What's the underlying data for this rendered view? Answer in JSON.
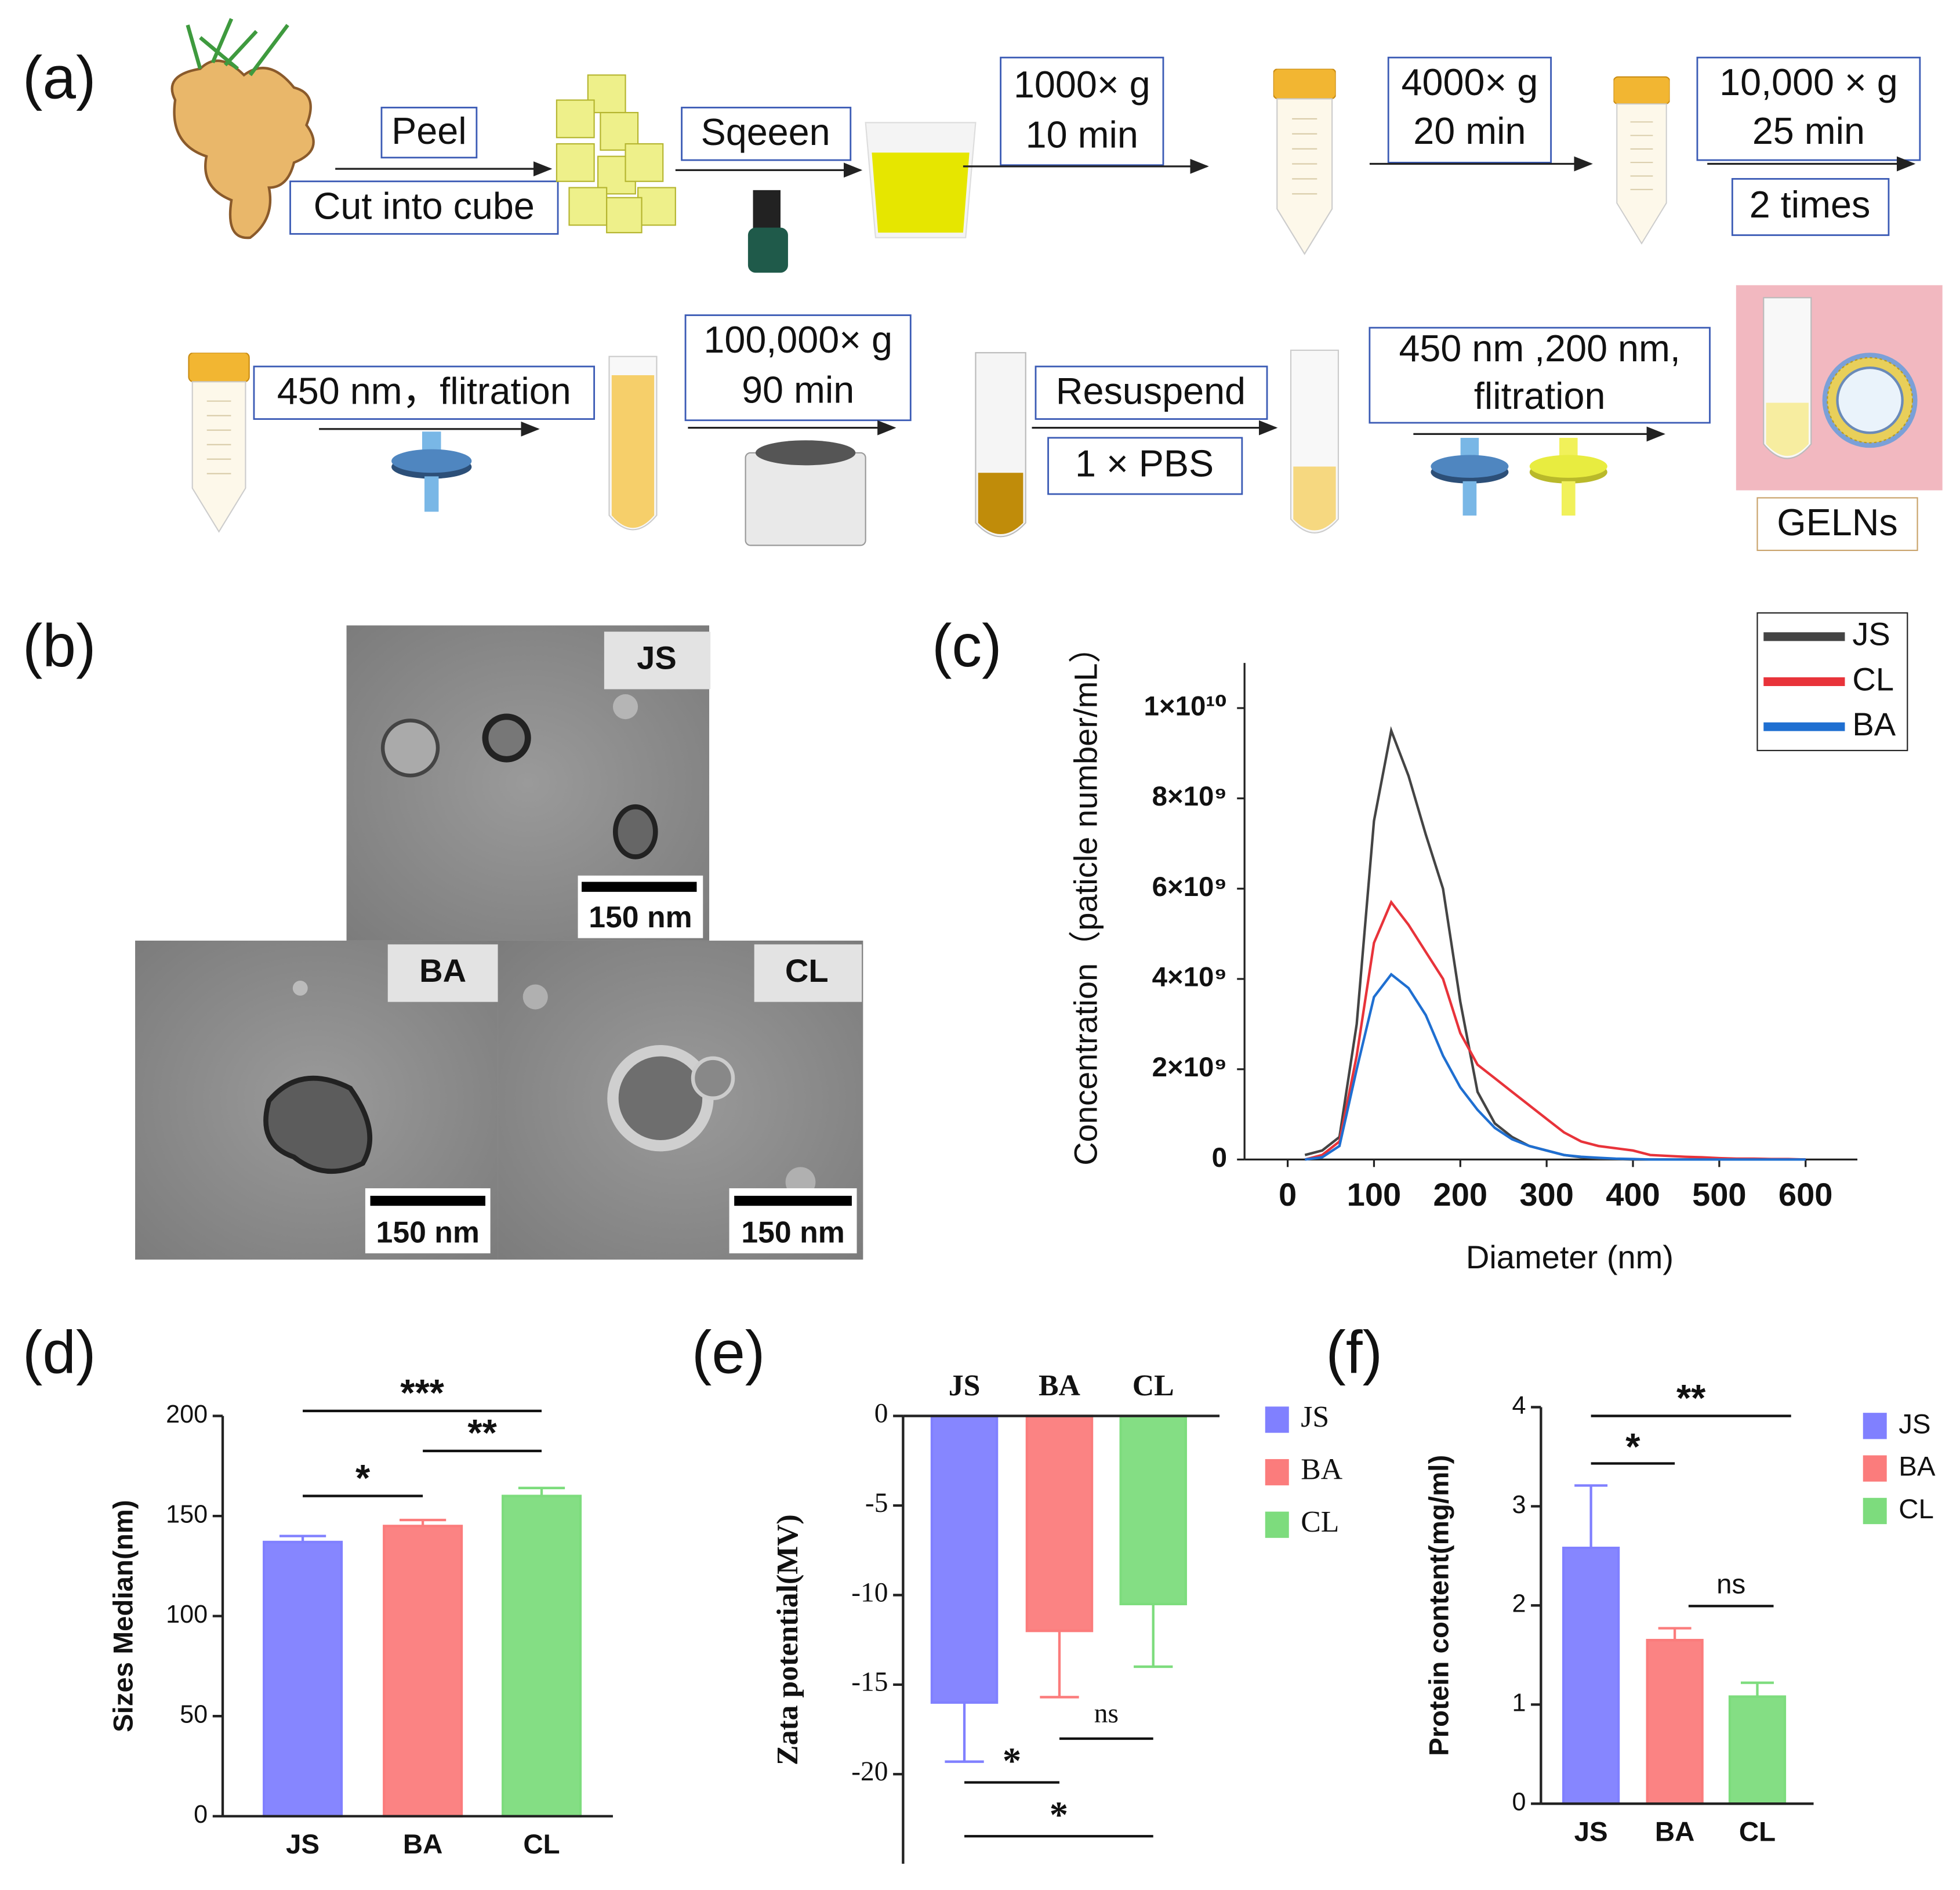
{
  "workflow": {
    "panel_label": "(a)",
    "steps": [
      {
        "above": [
          "Peel"
        ],
        "below": [
          "Cut into cube"
        ]
      },
      {
        "above": [
          "Sqeeen"
        ]
      },
      {
        "above": [
          "1000× g",
          "10 min"
        ]
      },
      {
        "above": [
          "4000× g",
          "20 min"
        ]
      },
      {
        "above": [
          "10,000 × g",
          "25 min"
        ],
        "below": [
          "2 times"
        ]
      },
      {
        "above": [
          "450 nm，flitration"
        ]
      },
      {
        "above": [
          "100,000× g",
          "90 min"
        ]
      },
      {
        "above": [
          "Resuspend"
        ],
        "below": [
          "1 × PBS"
        ]
      },
      {
        "above": [
          "450 nm ,200 nm,",
          "flitration"
        ]
      }
    ],
    "product": "GELNs"
  },
  "tem": {
    "panel_label": "(b)",
    "images": [
      {
        "label": "JS",
        "scale_bar": "150 nm"
      },
      {
        "label": "BA",
        "scale_bar": "150 nm"
      },
      {
        "label": "CL",
        "scale_bar": "150 nm"
      }
    ]
  },
  "chart_data": [
    {
      "type": "line",
      "panel_label": "(c)",
      "xlabel": "Diameter (nm)",
      "ylabel": "Concentration（paticle number/mL）",
      "x": [
        20,
        40,
        60,
        80,
        100,
        120,
        140,
        160,
        180,
        200,
        220,
        240,
        260,
        280,
        300,
        320,
        340,
        360,
        380,
        400,
        420,
        440,
        460,
        480,
        500,
        520,
        540,
        560,
        580,
        600
      ],
      "series": [
        {
          "name": "JS",
          "color": "#444444",
          "values": [
            100000000,
            200000000,
            500000000,
            3000000000,
            7500000000,
            9500000000,
            8500000000,
            7200000000,
            6000000000,
            3500000000,
            1500000000,
            800000000,
            500000000,
            300000000,
            200000000,
            100000000,
            50000000,
            20000000,
            10000000,
            0,
            0,
            0,
            0,
            0,
            0,
            0,
            0,
            0,
            0,
            0
          ]
        },
        {
          "name": "CL",
          "color": "#e8333a",
          "values": [
            0,
            100000000,
            400000000,
            2300000000,
            4800000000,
            5700000000,
            5200000000,
            4600000000,
            4000000000,
            2800000000,
            2100000000,
            1800000000,
            1500000000,
            1200000000,
            900000000,
            600000000,
            400000000,
            300000000,
            250000000,
            200000000,
            100000000,
            80000000,
            60000000,
            50000000,
            30000000,
            20000000,
            20000000,
            10000000,
            10000000,
            0
          ]
        },
        {
          "name": "BA",
          "color": "#1f6fd1",
          "values": [
            0,
            50000000,
            300000000,
            2000000000,
            3600000000,
            4100000000,
            3800000000,
            3200000000,
            2300000000,
            1600000000,
            1100000000,
            700000000,
            450000000,
            300000000,
            200000000,
            100000000,
            60000000,
            40000000,
            20000000,
            10000000,
            0,
            0,
            0,
            0,
            0,
            0,
            0,
            0,
            0,
            0
          ]
        }
      ],
      "xlim": [
        -50,
        660
      ],
      "xticks": [
        0,
        100,
        200,
        300,
        400,
        500,
        600
      ],
      "ylim": [
        0,
        11000000000
      ],
      "yticks": [
        0,
        {
          "value": 2000000000,
          "label": "2×10⁹"
        },
        {
          "value": 4000000000,
          "label": "4×10⁹"
        },
        {
          "value": 6000000000,
          "label": "6×10⁹"
        },
        {
          "value": 8000000000,
          "label": "8×10⁹"
        },
        {
          "value": 10000000000,
          "label": "1×10¹⁰"
        }
      ],
      "legend": "top-right"
    },
    {
      "type": "bar",
      "panel_label": "(d)",
      "ylabel": "Sizes Median(nm)",
      "categories": [
        "JS",
        "BA",
        "CL"
      ],
      "values": [
        137,
        145,
        160
      ],
      "errors": [
        3,
        3,
        4
      ],
      "colors": [
        "#8080ff",
        "#fb7c7c",
        "#7ddc7d"
      ],
      "ylim": [
        0,
        200
      ],
      "yticks": [
        0,
        50,
        100,
        150,
        200
      ],
      "significance": [
        {
          "label": "*"
        },
        {
          "label": "**"
        },
        {
          "label": "***"
        }
      ]
    },
    {
      "type": "bar",
      "panel_label": "(e)",
      "ylabel": "Zata potential(MV)",
      "categories": [
        "JS",
        "BA",
        "CL"
      ],
      "values": [
        -16,
        -12,
        -10.5
      ],
      "errors": [
        3.3,
        3.7,
        3.5
      ],
      "colors": [
        "#8080ff",
        "#fb7c7c",
        "#7ddc7d"
      ],
      "ylim": [
        -25,
        0
      ],
      "yticks": [
        0,
        -5,
        -10,
        -15,
        -20
      ],
      "significance": [
        {
          "label": "*"
        },
        {
          "label": "*"
        },
        {
          "label": "ns"
        }
      ],
      "legend": "right"
    },
    {
      "type": "bar",
      "panel_label": "(f)",
      "ylabel": "Protein content(mg/ml)",
      "categories": [
        "JS",
        "BA",
        "CL"
      ],
      "values": [
        2.58,
        1.65,
        1.08
      ],
      "errors": [
        0.63,
        0.12,
        0.14
      ],
      "colors": [
        "#8080ff",
        "#fb7c7c",
        "#7ddc7d"
      ],
      "ylim": [
        0,
        4
      ],
      "yticks": [
        0,
        1,
        2,
        3,
        4
      ],
      "significance": [
        {
          "label": "*"
        },
        {
          "label": "**"
        },
        {
          "label": "ns"
        }
      ],
      "legend": "right"
    }
  ]
}
